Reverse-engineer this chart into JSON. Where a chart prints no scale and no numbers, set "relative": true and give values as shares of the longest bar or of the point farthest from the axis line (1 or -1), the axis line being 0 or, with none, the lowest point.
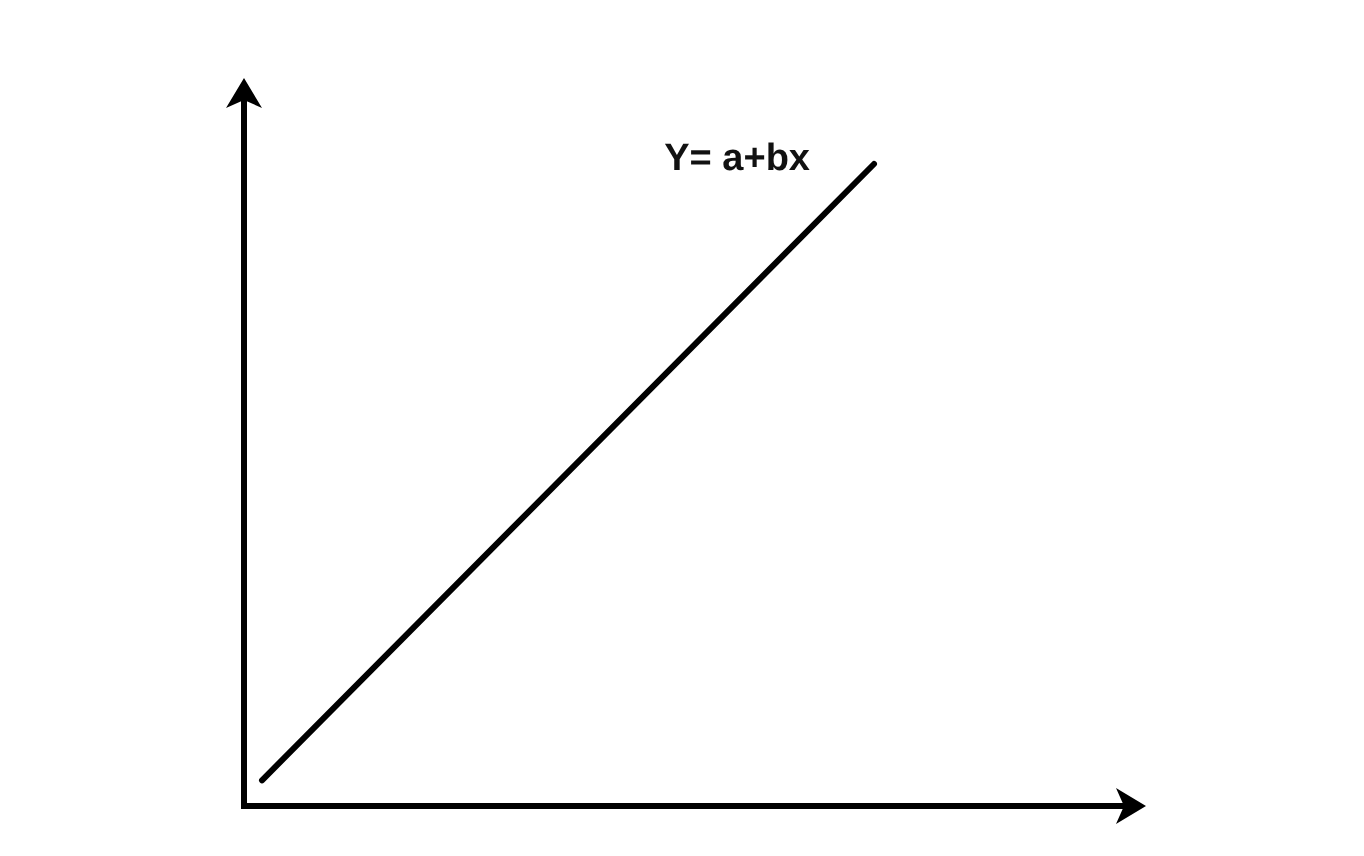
{
  "chart_data": {
    "type": "line",
    "relative": true,
    "categories": [
      null,
      null
    ],
    "series": [
      {
        "name": "Y= a+bx",
        "color": "#000000",
        "values": [
          0.04,
          1
        ]
      }
    ],
    "marker": "none",
    "line_style": "solid",
    "legend": false
  }
}
